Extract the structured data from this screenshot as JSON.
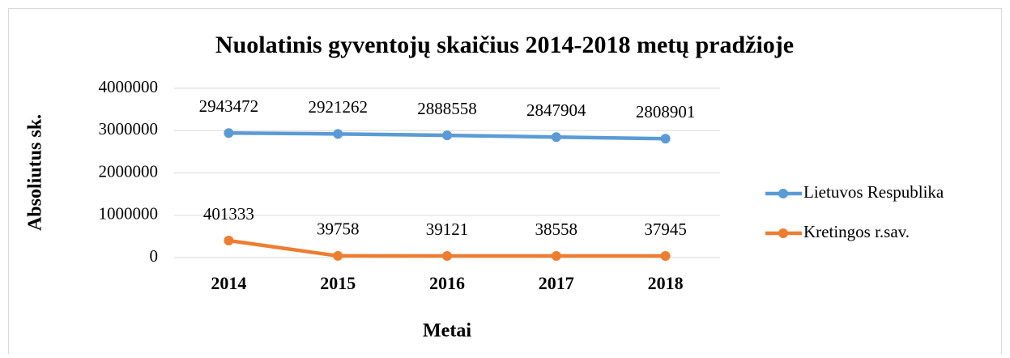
{
  "chart_data": {
    "type": "line",
    "title": "Nuolatinis gyventojų skaičius 2014-2018 metų pradžioje",
    "x_label": "Metai",
    "y_label": "Absoliutus sk.",
    "categories": [
      "2014",
      "2015",
      "2016",
      "2017",
      "2018"
    ],
    "series": [
      {
        "name": "Lietuvos Respublika",
        "color": "#5b9bd5",
        "values": [
          2943472,
          2921262,
          2888558,
          2847904,
          2808901
        ]
      },
      {
        "name": "Kretingos r.sav.",
        "color": "#ed7d31",
        "values": [
          401333,
          39758,
          39121,
          38558,
          37945
        ]
      }
    ],
    "ylim": [
      0,
      4000000
    ],
    "yticks": [
      0,
      1000000,
      2000000,
      3000000,
      4000000
    ],
    "grid": true,
    "legend": "right"
  }
}
